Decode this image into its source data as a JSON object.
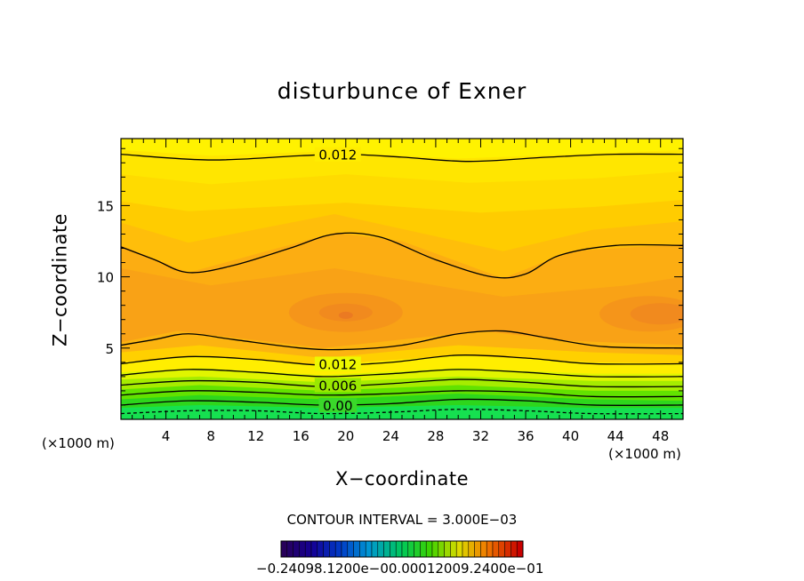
{
  "chart_data": {
    "type": "contour",
    "title": "disturbunce of Exner",
    "xlabel": "X−coordinate",
    "ylabel": "Z−coordinate",
    "x_unit_label": "(×1000 m)",
    "x_unit_label_right": "(×1000 m)",
    "xlim": [
      0,
      50
    ],
    "ylim": [
      0,
      19.7
    ],
    "x_ticks": [
      4,
      8,
      12,
      16,
      20,
      24,
      28,
      32,
      36,
      40,
      44,
      48
    ],
    "y_ticks": [
      5,
      10,
      15
    ],
    "contour_interval_text": "CONTOUR INTERVAL = 3.000E−03",
    "contour_labels": [
      {
        "text": "0.012",
        "x": 18.5,
        "z": 18.6
      },
      {
        "text": "0.012",
        "x": 18.5,
        "z": 3.9
      },
      {
        "text": "0.006",
        "x": 18.5,
        "z": 2.4
      },
      {
        "text": "0.00",
        "x": 18.5,
        "z": 1.0
      }
    ],
    "colorbar_label_text": "−0.24098.1200e−00.00012009.2400e−01",
    "colors": {
      "contour_line": "#000000",
      "low": "#00e06a",
      "mid": "#ffff00",
      "high": "#f28a10"
    }
  }
}
